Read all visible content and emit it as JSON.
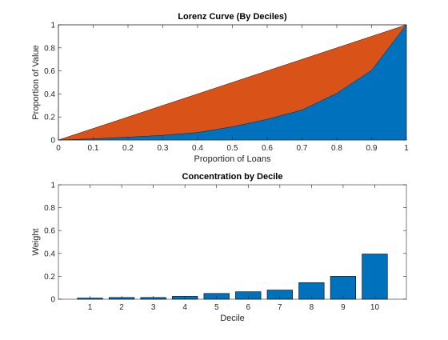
{
  "chart_data": [
    {
      "type": "area",
      "title": "Lorenz Curve (By Deciles)",
      "xlabel": "Proportion of Loans",
      "ylabel": "Proportion of Value",
      "xlim": [
        0,
        1
      ],
      "ylim": [
        0,
        1
      ],
      "xticks": [
        0,
        0.1,
        0.2,
        0.3,
        0.4,
        0.5,
        0.6,
        0.7,
        0.8,
        0.9,
        1
      ],
      "xtick_labels": [
        "0",
        "0.1",
        "0.2",
        "0.3",
        "0.4",
        "0.5",
        "0.6",
        "0.7",
        "0.8",
        "0.9",
        "1"
      ],
      "yticks": [
        0,
        0.2,
        0.4,
        0.6,
        0.8,
        1
      ],
      "ytick_labels": [
        "0",
        "0.2",
        "0.4",
        "0.6",
        "0.8",
        "1"
      ],
      "grid": false,
      "x": [
        0,
        0.1,
        0.2,
        0.3,
        0.4,
        0.5,
        0.6,
        0.7,
        0.8,
        0.9,
        1
      ],
      "series": [
        {
          "values": [
            0,
            0.1,
            0.2,
            0.3,
            0.4,
            0.5,
            0.6,
            0.7,
            0.8,
            0.9,
            1
          ],
          "color": "#D95319"
        },
        {
          "values": [
            0,
            0.01,
            0.025,
            0.04,
            0.065,
            0.115,
            0.18,
            0.26,
            0.405,
            0.605,
            1
          ],
          "color": "#0072BD"
        }
      ]
    },
    {
      "type": "bar",
      "title": "Concentration by Decile",
      "xlabel": "Decile",
      "ylabel": "Weight",
      "categories": [
        "1",
        "2",
        "3",
        "4",
        "5",
        "6",
        "7",
        "8",
        "9",
        "10"
      ],
      "values": [
        0.01,
        0.015,
        0.015,
        0.025,
        0.05,
        0.065,
        0.08,
        0.145,
        0.2,
        0.395
      ],
      "ylim": [
        0,
        1
      ],
      "yticks": [
        0,
        0.2,
        0.4,
        0.6,
        0.8,
        1
      ],
      "ytick_labels": [
        "0",
        "0.2",
        "0.4",
        "0.6",
        "0.8",
        "1"
      ],
      "xlim": [
        0,
        11
      ],
      "grid": false,
      "color": "#0072BD"
    }
  ]
}
